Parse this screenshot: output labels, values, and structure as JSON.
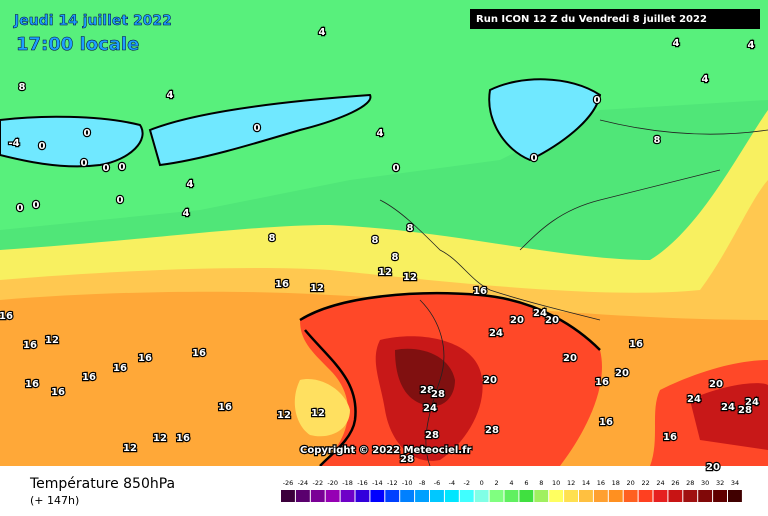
{
  "header": {
    "date": "Jeudi 14 juillet 2022",
    "time": "17:00 locale",
    "run": "Run ICON 12 Z du Vendredi 8 juillet 2022"
  },
  "copyright": "Copyright © 2022 Meteociel.fr",
  "footer": {
    "title": "Température 850hPa",
    "lead": "(+ 147h)"
  },
  "colorbar": {
    "ticks": [
      -26,
      -24,
      -22,
      -20,
      -18,
      -16,
      -14,
      -12,
      -10,
      -8,
      -6,
      -4,
      -2,
      0,
      2,
      4,
      6,
      8,
      10,
      12,
      14,
      16,
      18,
      20,
      22,
      24,
      26,
      28,
      30,
      32,
      34
    ],
    "colors": [
      "#3b003b",
      "#5a006e",
      "#7a0096",
      "#9600b4",
      "#6e00c8",
      "#3200dc",
      "#0000ff",
      "#0040ff",
      "#0080ff",
      "#00a0ff",
      "#00c8ff",
      "#00e6ff",
      "#40ffff",
      "#80ffe6",
      "#80ff80",
      "#60f060",
      "#40e040",
      "#a0f060",
      "#ffff60",
      "#ffe050",
      "#ffc040",
      "#ffa030",
      "#ff9020",
      "#ff6020",
      "#ff4020",
      "#e62020",
      "#c81414",
      "#a01010",
      "#800808",
      "#600000",
      "#400000"
    ]
  },
  "map": {
    "contour_labels": [
      "8",
      "4",
      "4",
      "4",
      "4",
      "4",
      "4",
      "4",
      "4",
      "-4",
      "0",
      "0",
      "0",
      "0",
      "0",
      "0",
      "0",
      "0",
      "0",
      "0",
      "0",
      "0",
      "8",
      "8",
      "8",
      "8",
      "8",
      "12",
      "12",
      "12",
      "12",
      "12",
      "12",
      "12",
      "12",
      "16",
      "16",
      "16",
      "16",
      "16",
      "16",
      "16",
      "16",
      "16",
      "16",
      "16",
      "16",
      "16",
      "16",
      "16",
      "16",
      "20",
      "20",
      "20",
      "20",
      "20",
      "20",
      "20",
      "24",
      "24",
      "24",
      "24",
      "24",
      "24",
      "28",
      "28",
      "28",
      "28",
      "28",
      "28"
    ]
  }
}
